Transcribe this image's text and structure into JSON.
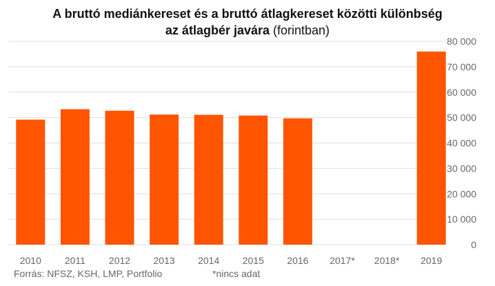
{
  "header": {
    "title_line1": "A bruttó mediánkereset és a bruttó átlagkereset közötti különbség",
    "title_line2_bold": "az átlagbér javára",
    "title_line2_normal": " (forintban)"
  },
  "chart_data": {
    "type": "bar",
    "categories": [
      "2010",
      "2011",
      "2012",
      "2013",
      "2014",
      "2015",
      "2016",
      "2017*",
      "2018*",
      "2019"
    ],
    "values": [
      49200,
      53300,
      52700,
      51200,
      51100,
      50800,
      49700,
      null,
      null,
      76000
    ],
    "ylim": [
      0,
      80000
    ],
    "yticks": [
      "0",
      "10 000",
      "20 000",
      "30 000",
      "40 000",
      "50 000",
      "60 000",
      "70 000",
      "80 000"
    ],
    "ytick_values": [
      0,
      10000,
      20000,
      30000,
      40000,
      50000,
      60000,
      70000,
      80000
    ],
    "y_axis_position": "right",
    "grid": true,
    "bar_color": "#FF5500",
    "grid_color": "#DDDDDD",
    "tick_label_color": "#666666"
  },
  "footer": {
    "source": "Forrás: NFSZ, KSH, LMP, Portfolio",
    "note": "*nincs adat"
  }
}
